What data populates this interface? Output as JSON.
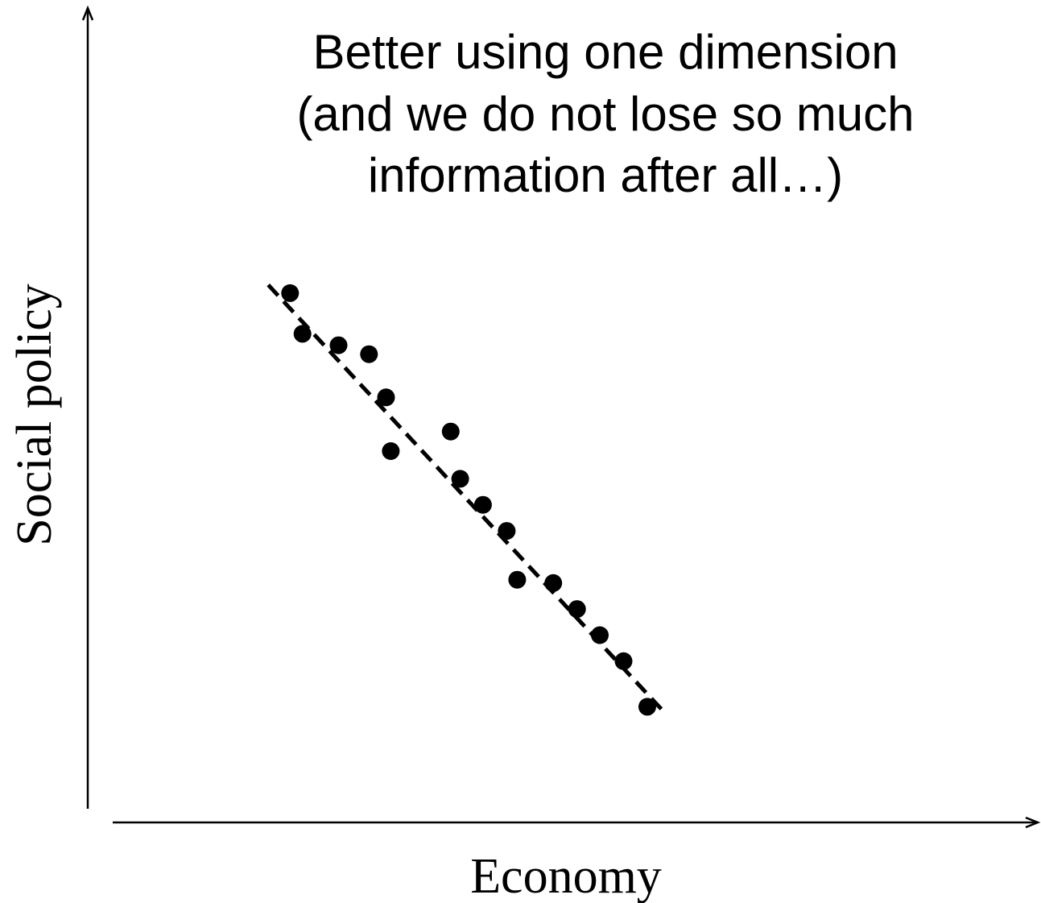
{
  "chart_data": {
    "type": "scatter",
    "title_lines": [
      "Better using one dimension",
      "(and we do not lose so much",
      "information after all…)"
    ],
    "xlabel": "Economy",
    "ylabel": "Social policy",
    "xlim": [
      0,
      100
    ],
    "ylim": [
      0,
      100
    ],
    "grid": false,
    "legend": "none",
    "colors": {
      "points": "#000000",
      "axes": "#000000",
      "fit_line": "#000000"
    },
    "points": [
      {
        "x": 21.3,
        "y": 65.0
      },
      {
        "x": 22.6,
        "y": 60.0
      },
      {
        "x": 26.4,
        "y": 58.6
      },
      {
        "x": 29.6,
        "y": 57.5
      },
      {
        "x": 31.4,
        "y": 52.2
      },
      {
        "x": 31.9,
        "y": 45.6
      },
      {
        "x": 38.2,
        "y": 48.0
      },
      {
        "x": 39.2,
        "y": 42.2
      },
      {
        "x": 41.6,
        "y": 39.0
      },
      {
        "x": 44.1,
        "y": 35.8
      },
      {
        "x": 45.2,
        "y": 29.8
      },
      {
        "x": 49.0,
        "y": 29.4
      },
      {
        "x": 51.5,
        "y": 26.2
      },
      {
        "x": 53.9,
        "y": 23.0
      },
      {
        "x": 56.4,
        "y": 19.8
      },
      {
        "x": 58.9,
        "y": 14.2
      }
    ],
    "fit_line": {
      "style": "dashed",
      "from": {
        "x": 19.0,
        "y": 66.0
      },
      "to": {
        "x": 60.7,
        "y": 13.5
      }
    }
  }
}
